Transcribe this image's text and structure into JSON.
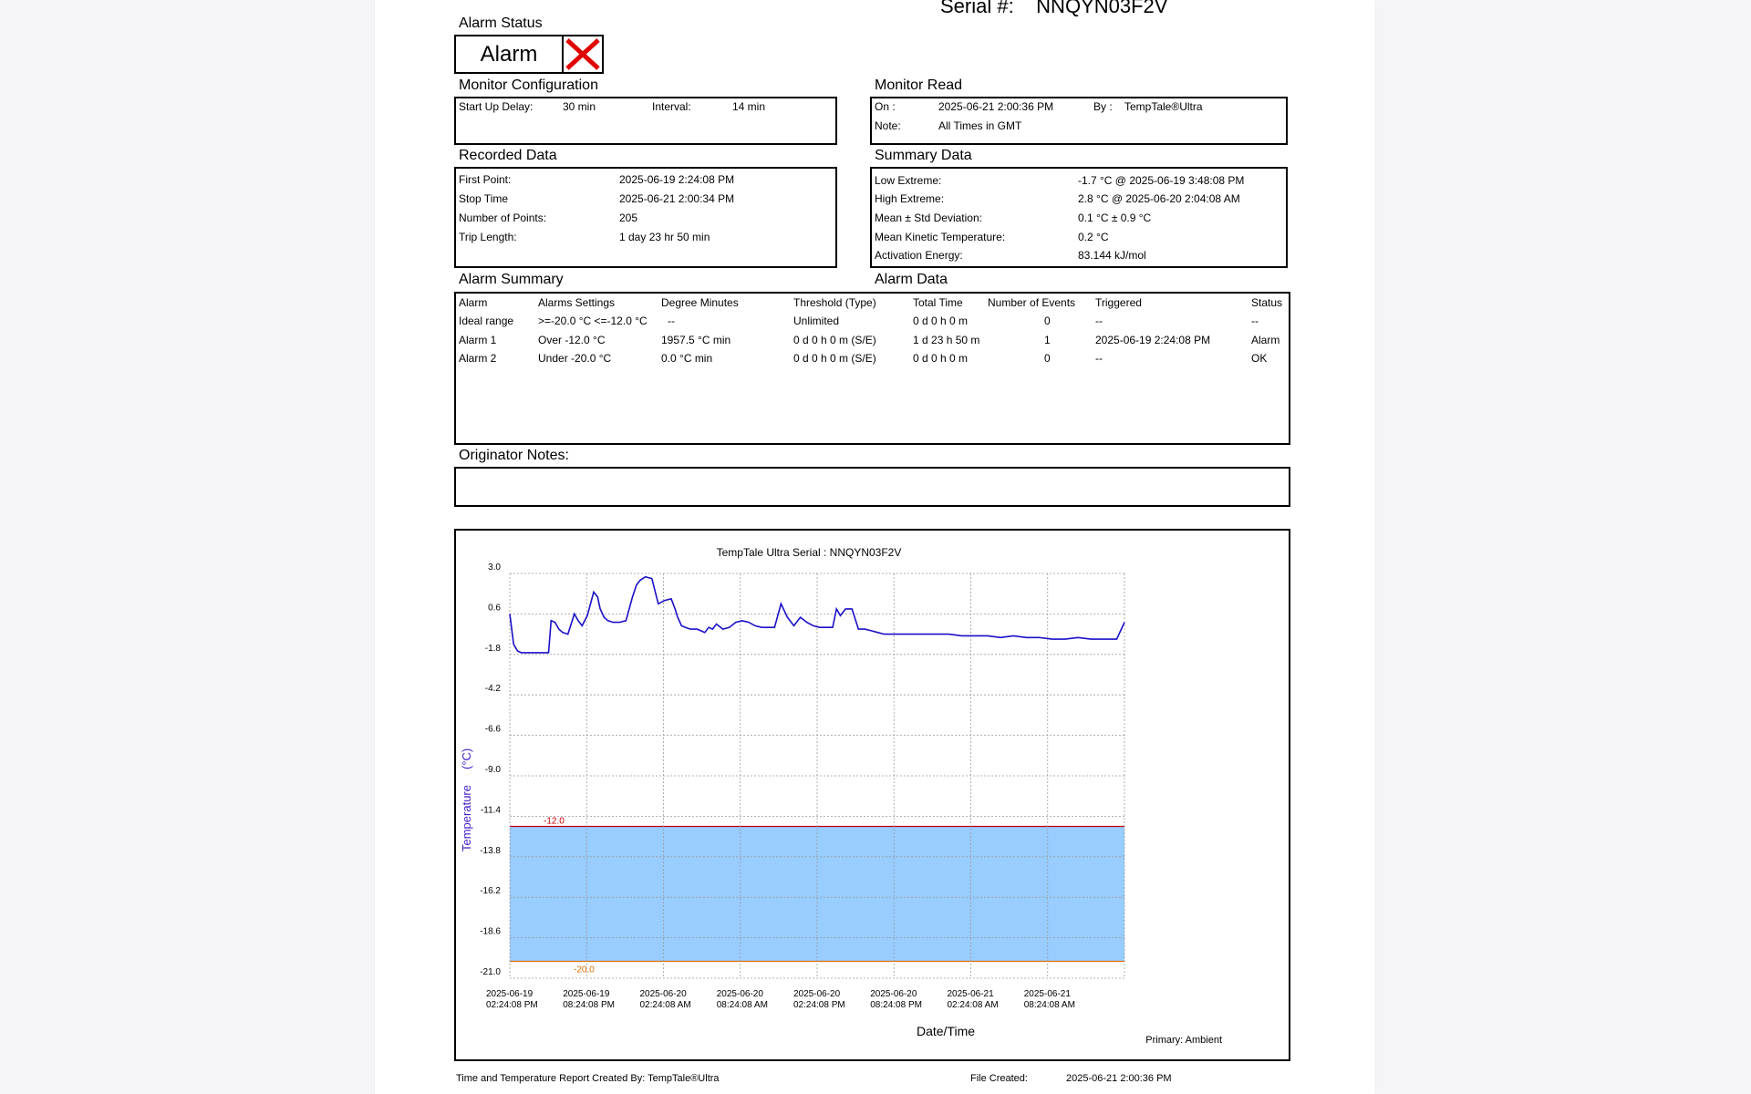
{
  "serial": {
    "label": "Serial #:",
    "value": "NNQYN03F2V"
  },
  "alarm_status": {
    "title": "Alarm Status",
    "badge": "Alarm"
  },
  "monitor_config": {
    "title": "Monitor Configuration",
    "startup_label": "Start Up Delay:",
    "startup_value": "30 min",
    "interval_label": "Interval:",
    "interval_value": "14 min"
  },
  "monitor_read": {
    "title": "Monitor Read",
    "on_label": "On :",
    "on_value": "2025-06-21  2:00:36 PM",
    "by_label": "By :",
    "by_value": "TempTale®Ultra",
    "note_label": "Note:",
    "note_value": "All Times in GMT"
  },
  "recorded_data": {
    "title": "Recorded Data",
    "rows": [
      {
        "label": "First Point:",
        "value": "2025-06-19  2:24:08 PM"
      },
      {
        "label": "Stop Time",
        "value": "2025-06-21  2:00:34 PM"
      },
      {
        "label": "Number of Points:",
        "value": "205"
      },
      {
        "label": "Trip Length:",
        "value": "1 day 23 hr 50 min"
      }
    ]
  },
  "summary_data": {
    "title": "Summary Data",
    "rows": [
      {
        "label": "Low Extreme:",
        "value": "-1.7 °C @ 2025-06-19  3:48:08 PM"
      },
      {
        "label": "High Extreme:",
        "value": "2.8 °C @ 2025-06-20  2:04:08 AM"
      },
      {
        "label": "Mean ± Std Deviation:",
        "value": "0.1 °C ± 0.9 °C"
      },
      {
        "label": "Mean Kinetic Temperature:",
        "value": "0.2 °C"
      },
      {
        "label": "Activation Energy:",
        "value": "83.144 kJ/mol"
      }
    ]
  },
  "alarm_summary": {
    "title": "Alarm Summary",
    "headers": [
      "Alarm",
      "Alarms Settings",
      "Degree Minutes",
      "Threshold (Type)",
      "Total Time",
      "Number of Events",
      "Triggered",
      "Status"
    ],
    "rows": [
      [
        "Ideal range",
        ">=-20.0 °C <=-12.0 °C",
        "--",
        "Unlimited",
        "0 d 0 h 0 m",
        "0",
        "--",
        "--"
      ],
      [
        "Alarm 1",
        "Over -12.0 °C",
        "1957.5 °C min",
        "0 d 0 h 0 m (S/E)",
        "1 d 23 h 50 m",
        "1",
        "2025-06-19  2:24:08 PM",
        "Alarm"
      ],
      [
        "Alarm 2",
        "Under -20.0 °C",
        "0.0 °C min",
        "0 d 0 h 0 m (S/E)",
        "0 d 0 h 0 m",
        "0",
        "--",
        "OK"
      ]
    ]
  },
  "alarm_data": {
    "title": "Alarm Data"
  },
  "originator_notes": {
    "title": "Originator Notes:"
  },
  "footer": {
    "created_by": "Time and Temperature Report Created By:  TempTale®Ultra",
    "file_created_label": "File Created:",
    "file_created_value": "2025-06-21  2:00:36 PM"
  },
  "chart_data": {
    "type": "line",
    "title": "TempTale Ultra  Serial : NNQYN03F2V",
    "xlabel": "Date/Time",
    "ylabel": "Temperature",
    "ylabel_unit": "(°C)",
    "primary_label": "Primary: Ambient",
    "y_ticks": [
      "3.0",
      "0.6",
      "-1.8",
      "-4.2",
      "-6.6",
      "-9.0",
      "-11.4",
      "-13.8",
      "-16.2",
      "-18.6",
      "-21.0"
    ],
    "ylim": [
      -21.0,
      3.0
    ],
    "x_ticks": [
      [
        "2025-06-19",
        "02:24:08 PM"
      ],
      [
        "2025-06-19",
        "08:24:08 PM"
      ],
      [
        "2025-06-20",
        "02:24:08 AM"
      ],
      [
        "2025-06-20",
        "08:24:08 AM"
      ],
      [
        "2025-06-20",
        "02:24:08 PM"
      ],
      [
        "2025-06-20",
        "08:24:08 PM"
      ],
      [
        "2025-06-21",
        "02:24:08 AM"
      ],
      [
        "2025-06-21",
        "08:24:08 AM"
      ]
    ],
    "x_hours_range": [
      0,
      47.6
    ],
    "upper_limit": {
      "value": -12.0,
      "label": "-12.0",
      "color": "#c00000"
    },
    "lower_limit": {
      "value": -20.0,
      "label": "-20.0",
      "color": "#e07000"
    },
    "band_color": "#99ccff",
    "line_color": "#1a10c8",
    "series": [
      {
        "x_hours": [
          0,
          0.3,
          0.6,
          0.9,
          1.2,
          1.5,
          2,
          2.5,
          3,
          3.2,
          3.5,
          3.8,
          4.1,
          4.5,
          5,
          5.3,
          5.6,
          6,
          6.5,
          6.8,
          7,
          7.3,
          7.6,
          8,
          8.5,
          9,
          9.5,
          9.8,
          10.1,
          10.5,
          11,
          11.5,
          12,
          12.5,
          12.8,
          13,
          13.3,
          13.6,
          14,
          14.5,
          14.8,
          15.1,
          15.4,
          15.7,
          16,
          16.5,
          17,
          17.5,
          18,
          18.5,
          19,
          19.5,
          20,
          20.5,
          21,
          21.5,
          22,
          22.5,
          23,
          23.5,
          24,
          24.5,
          25,
          25.3,
          25.6,
          26,
          26.5,
          27,
          27.5,
          28,
          28.5,
          29,
          29.5,
          30,
          30.2,
          30.5,
          30.8,
          31,
          31.5,
          32,
          32.5,
          33,
          34,
          35,
          36,
          37,
          38,
          39,
          40,
          41,
          42,
          43,
          44,
          45,
          46,
          47,
          47.6
        ],
        "values": [
          0.6,
          -1.2,
          -1.6,
          -1.7,
          -1.7,
          -1.7,
          -1.7,
          -1.7,
          -1.7,
          0.2,
          0.1,
          -0.3,
          -0.5,
          -0.6,
          0.6,
          0.2,
          -0.1,
          0.5,
          1.9,
          1.6,
          0.9,
          0.4,
          0.2,
          0.1,
          0.1,
          0.2,
          1.6,
          2.3,
          2.6,
          2.8,
          2.7,
          1.2,
          1.4,
          1.5,
          0.9,
          0.4,
          -0.1,
          -0.2,
          -0.3,
          -0.3,
          -0.4,
          -0.5,
          -0.2,
          -0.3,
          0,
          -0.3,
          -0.2,
          0.1,
          0.2,
          0.1,
          -0.1,
          -0.2,
          -0.2,
          -0.2,
          1.2,
          0.4,
          -0.1,
          0.4,
          0.1,
          -0.1,
          -0.2,
          -0.2,
          -0.2,
          0.9,
          0.5,
          0.9,
          0.9,
          -0.3,
          -0.3,
          -0.4,
          -0.5,
          -0.6,
          -0.6,
          -0.6,
          -0.6,
          -0.6,
          -0.6,
          -0.6,
          -0.6,
          -0.6,
          -0.6,
          -0.6,
          -0.6,
          -0.7,
          -0.7,
          -0.7,
          -0.8,
          -0.7,
          -0.8,
          -0.8,
          -0.9,
          -0.9,
          -0.8,
          -0.9,
          -0.9,
          -0.9,
          0.1
        ]
      }
    ]
  }
}
